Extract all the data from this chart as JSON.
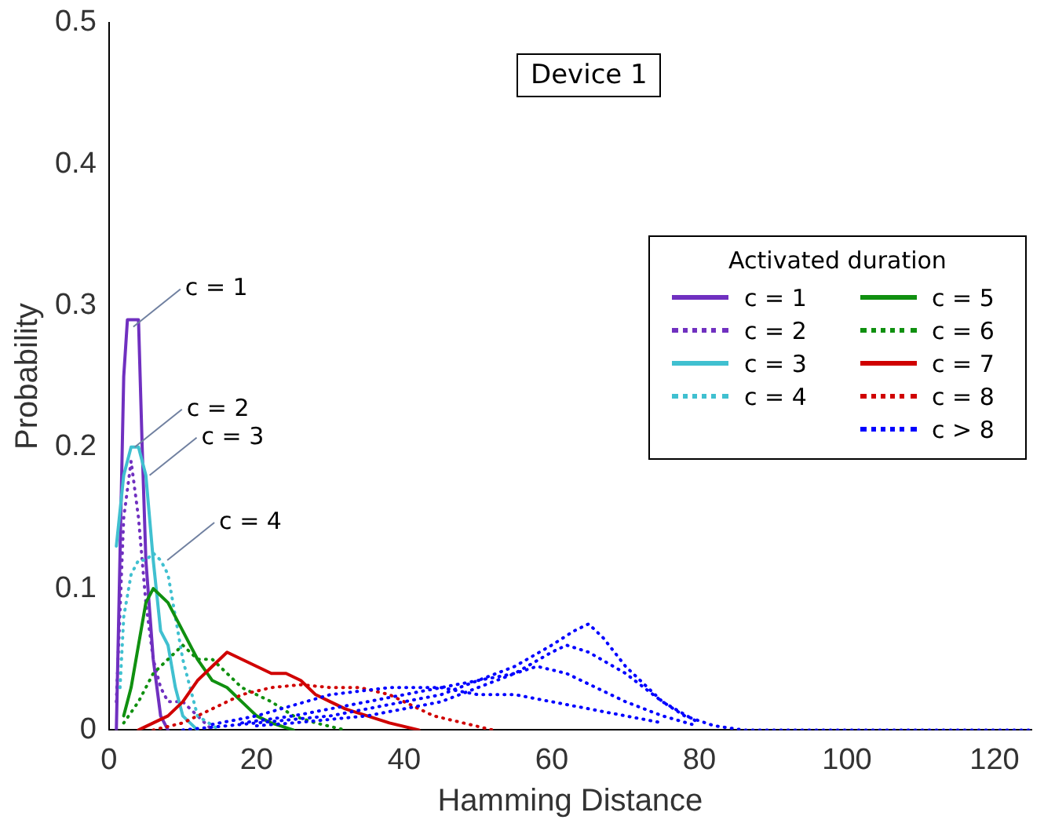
{
  "chart_data": {
    "type": "line",
    "xlabel": "Hamming Distance",
    "ylabel": "Probability",
    "legend_title": "Activated duration",
    "legend": "right",
    "grid": false,
    "marker": "none",
    "xlim": [
      0,
      125
    ],
    "xticks": [
      0,
      20,
      40,
      60,
      80,
      100,
      120
    ],
    "ylim": [
      0,
      0.5
    ],
    "yticks": [
      0,
      0.1,
      0.2,
      0.3,
      0.4,
      0.5
    ],
    "annotations": [
      "Device 1",
      {
        "text": "c = 1",
        "x": 3.3,
        "y": 0.285
      },
      {
        "text": "c = 2",
        "x": 3.5,
        "y": 0.2
      },
      {
        "text": "c = 3",
        "x": 5.5,
        "y": 0.18
      },
      {
        "text": "c = 4",
        "x": 7.9,
        "y": 0.12
      }
    ],
    "series": [
      {
        "name": "c = 1",
        "color": "#7030c0",
        "line_style": "solid",
        "x": [
          1,
          2,
          2.5,
          3,
          4,
          4.5,
          5,
          6,
          7,
          8
        ],
        "values": [
          0,
          0.25,
          0.29,
          0.29,
          0.29,
          0.2,
          0.12,
          0.05,
          0.01,
          0
        ]
      },
      {
        "name": "c = 2",
        "color": "#7030c0",
        "line_style": "dotted",
        "x": [
          1,
          2,
          3,
          4,
          5,
          6,
          7,
          8,
          10,
          12,
          14
        ],
        "values": [
          0.02,
          0.15,
          0.19,
          0.15,
          0.09,
          0.05,
          0.03,
          0.02,
          0.02,
          0.01,
          0
        ]
      },
      {
        "name": "c = 3",
        "color": "#40c0d0",
        "line_style": "solid",
        "x": [
          1,
          2,
          3,
          4,
          5,
          6,
          7,
          8,
          9,
          10,
          12
        ],
        "values": [
          0.13,
          0.18,
          0.2,
          0.2,
          0.18,
          0.12,
          0.07,
          0.06,
          0.03,
          0.01,
          0
        ]
      },
      {
        "name": "c = 4",
        "color": "#40c0d0",
        "line_style": "dotted",
        "x": [
          1.5,
          2,
          3,
          4,
          5,
          6,
          7,
          8,
          9,
          10,
          12,
          15
        ],
        "values": [
          0.03,
          0.08,
          0.11,
          0.12,
          0.12,
          0.125,
          0.12,
          0.11,
          0.08,
          0.05,
          0.01,
          0
        ]
      },
      {
        "name": "c = 5",
        "color": "#109010",
        "line_style": "solid",
        "x": [
          2,
          3,
          4,
          5,
          6,
          8,
          10,
          12,
          14,
          16,
          18,
          20,
          22,
          25
        ],
        "values": [
          0.01,
          0.03,
          0.06,
          0.09,
          0.1,
          0.09,
          0.07,
          0.05,
          0.035,
          0.03,
          0.02,
          0.01,
          0.005,
          0
        ]
      },
      {
        "name": "c = 6",
        "color": "#109010",
        "line_style": "dotted",
        "x": [
          2,
          4,
          6,
          8,
          10,
          12,
          14,
          16,
          18,
          20,
          22,
          25,
          28,
          32
        ],
        "values": [
          0.005,
          0.02,
          0.04,
          0.05,
          0.06,
          0.05,
          0.05,
          0.04,
          0.03,
          0.025,
          0.02,
          0.01,
          0.005,
          0
        ]
      },
      {
        "name": "c = 7",
        "color": "#d00000",
        "line_style": "solid",
        "x": [
          4,
          6,
          8,
          10,
          12,
          14,
          16,
          18,
          20,
          22,
          24,
          26,
          28,
          30,
          32,
          35,
          38,
          42
        ],
        "values": [
          0,
          0.005,
          0.01,
          0.02,
          0.035,
          0.045,
          0.055,
          0.05,
          0.045,
          0.04,
          0.04,
          0.035,
          0.025,
          0.02,
          0.015,
          0.01,
          0.005,
          0
        ]
      },
      {
        "name": "c = 8",
        "color": "#d00000",
        "line_style": "dotted",
        "x": [
          6,
          10,
          14,
          18,
          22,
          26,
          30,
          34,
          38,
          40,
          44,
          48,
          52
        ],
        "values": [
          0,
          0.005,
          0.015,
          0.025,
          0.03,
          0.032,
          0.03,
          0.03,
          0.025,
          0.02,
          0.01,
          0.005,
          0
        ]
      },
      {
        "name": "c > 8",
        "color": "#0000ff",
        "line_style": "dotted",
        "x": [
          10,
          20,
          30,
          40,
          45,
          50,
          55,
          60,
          63,
          65,
          67,
          70,
          72,
          75,
          78,
          82,
          86,
          125
        ],
        "values": [
          0,
          0.005,
          0.01,
          0.02,
          0.025,
          0.035,
          0.045,
          0.06,
          0.07,
          0.075,
          0.065,
          0.045,
          0.035,
          0.02,
          0.01,
          0.003,
          0,
          0
        ]
      },
      {
        "color": "#0000ff",
        "line_style": "dotted",
        "x": [
          20,
          25,
          35,
          45,
          50,
          55,
          60,
          62,
          65,
          70,
          75,
          80
        ],
        "values": [
          0.003,
          0.005,
          0.01,
          0.02,
          0.03,
          0.04,
          0.055,
          0.06,
          0.055,
          0.04,
          0.02,
          0.005
        ]
      },
      {
        "color": "#0000ff",
        "line_style": "dotted",
        "x": [
          18,
          25,
          35,
          45,
          50,
          55,
          58,
          62,
          66,
          70,
          75,
          79
        ],
        "values": [
          0.005,
          0.01,
          0.02,
          0.03,
          0.035,
          0.04,
          0.045,
          0.04,
          0.03,
          0.02,
          0.01,
          0.004
        ]
      },
      {
        "color": "#0000ff",
        "line_style": "dotted",
        "x": [
          14,
          20,
          30,
          38,
          45,
          50,
          55,
          60,
          65,
          70,
          75
        ],
        "values": [
          0.004,
          0.01,
          0.025,
          0.03,
          0.03,
          0.025,
          0.025,
          0.02,
          0.015,
          0.01,
          0.005
        ]
      }
    ]
  }
}
